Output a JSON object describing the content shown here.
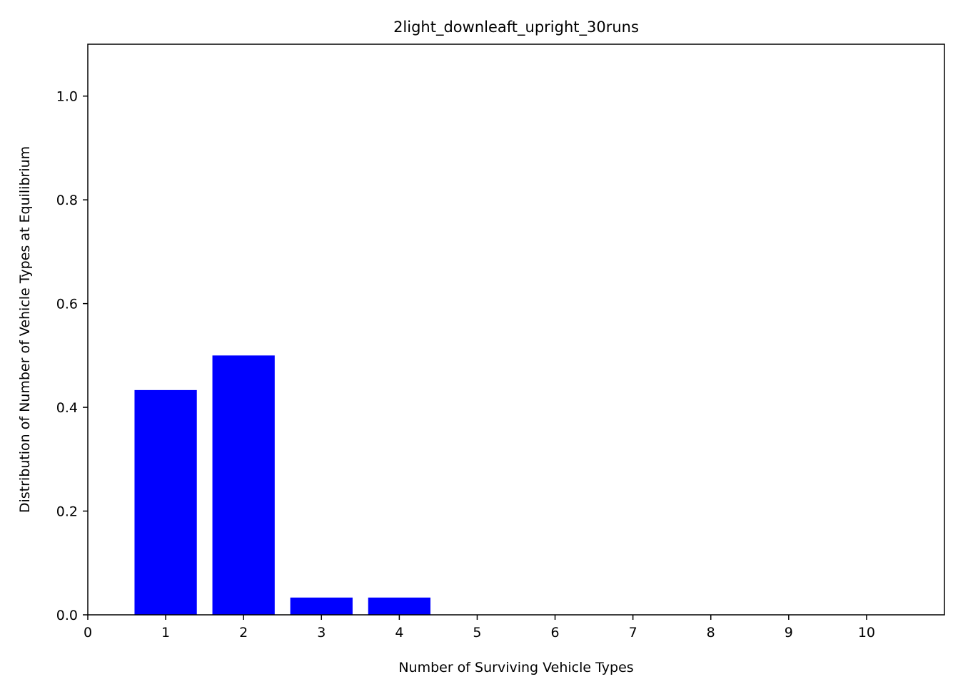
{
  "chart_data": {
    "type": "bar",
    "title": "2light_downleaft_upright_30runs",
    "xlabel": "Number of Surviving Vehicle Types",
    "ylabel": "Distribution of Number of Vehicle Types at Equilibrium",
    "x": [
      1,
      2,
      3,
      4,
      5,
      6,
      7,
      8,
      9,
      10
    ],
    "values": [
      0.4333,
      0.5,
      0.0333,
      0.0333,
      0,
      0,
      0,
      0,
      0,
      0
    ],
    "xlim": [
      0,
      11
    ],
    "ylim": [
      0,
      1.1
    ],
    "xticks": [
      "0",
      "1",
      "2",
      "3",
      "4",
      "5",
      "6",
      "7",
      "8",
      "9",
      "10"
    ],
    "yticks": [
      "0.0",
      "0.2",
      "0.4",
      "0.6",
      "0.8",
      "1.0"
    ],
    "bar_color": "#0000ff",
    "grid": false,
    "legend": "none"
  }
}
